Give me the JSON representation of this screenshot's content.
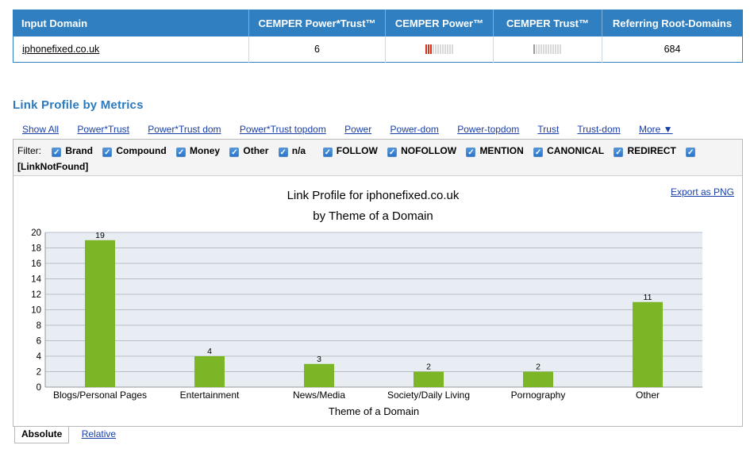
{
  "summary": {
    "headers": [
      "Input Domain",
      "CEMPER Power*Trust™",
      "CEMPER Power™",
      "CEMPER Trust™",
      "Referring Root-Domains"
    ],
    "domain": "iphonefixed.co.uk",
    "power_trust": "6",
    "power_level": 3,
    "trust_level": 1,
    "referring_root_domains": "684"
  },
  "section_title": "Link Profile by Metrics",
  "nav": [
    "Show All",
    "Power*Trust",
    "Power*Trust dom",
    "Power*Trust topdom",
    "Power",
    "Power-dom",
    "Power-topdom",
    "Trust",
    "Trust-dom",
    "More ▼"
  ],
  "filter": {
    "label": "Filter:",
    "items": [
      "Brand",
      "Compound",
      "Money",
      "Other",
      "n/a",
      "FOLLOW",
      "NOFOLLOW",
      "MENTION",
      "CANONICAL",
      "REDIRECT",
      "[LinkNotFound]"
    ]
  },
  "export_label": "Export as PNG",
  "chart_data": {
    "type": "bar",
    "title": "Link Profile for iphonefixed.co.uk",
    "subtitle": "by Theme of a Domain",
    "xlabel": "Theme of a Domain",
    "ylabel": "",
    "categories": [
      "Blogs/Personal Pages",
      "Entertainment",
      "News/Media",
      "Society/Daily Living",
      "Pornography",
      "Other"
    ],
    "values": [
      19,
      4,
      3,
      2,
      2,
      11
    ],
    "ylim": [
      0,
      20
    ],
    "yticks": [
      0,
      2,
      4,
      6,
      8,
      10,
      12,
      14,
      16,
      18,
      20
    ],
    "bar_color": "#7cb526",
    "grid": true,
    "plot_bg": "#e8edf3"
  },
  "tabs": [
    "Absolute",
    "Relative"
  ],
  "colors": {
    "header_blue": "#2f7fc1",
    "link": "#1a3fa6",
    "red_bar": "#d9311c"
  }
}
